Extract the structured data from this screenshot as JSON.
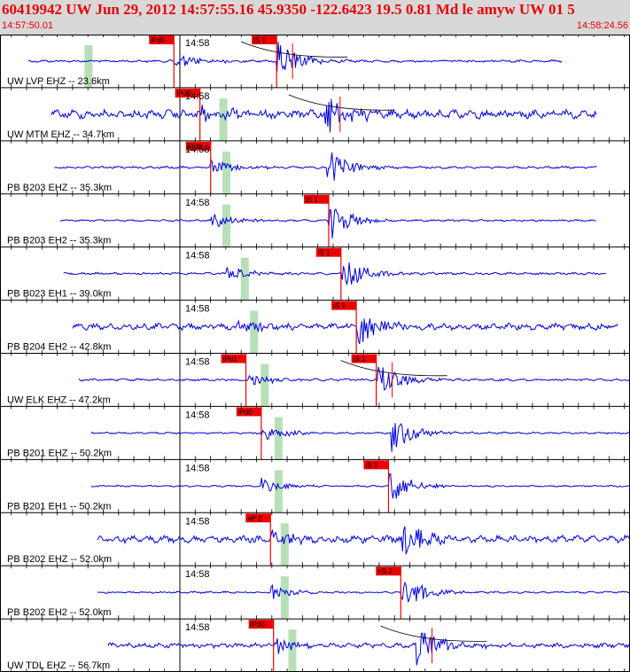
{
  "header": {
    "title": "60419942 UW Jun 29, 2012 14:57:55.16   45.9350 -122.6423 19.5 0.81 Md le amyw UW 01   5",
    "start_time": "14:57:50.01",
    "end_time": "14:58:24.56"
  },
  "colors": {
    "trace": "#0000dd",
    "pick": "#ee0000",
    "pick_window": "#b8e0b8",
    "header_bg": "#d8d8d8",
    "header_text": "#e80000",
    "grid": "#000000"
  },
  "minute_label": "14:58",
  "traces": [
    {
      "label": "UW LVP EHZ -- 23.6km",
      "p_label": "iPd0",
      "s_label": "iS 1",
      "p_time": 9.6,
      "s_time": 16.3,
      "p_window": 4.0,
      "has_coda": true,
      "start": 0.1,
      "end": 34.9,
      "noise": 0.15,
      "burst": 1.0
    },
    {
      "label": "UW MTM EHZ -- 34.7km",
      "p_label": "iPd0",
      "s_label": "",
      "p_time": 11.3,
      "s_time": 19.4,
      "p_window": 12.8,
      "has_coda": true,
      "start": 1.6,
      "end": 37.2,
      "noise": 0.55,
      "burst": 1.0
    },
    {
      "label": "PB B203 EHZ -- 35.3km",
      "p_label": "iPd0",
      "s_label": "",
      "p_time": 12.0,
      "s_time": 19.6,
      "p_window": 13.0,
      "has_coda": false,
      "start": 1.8,
      "end": 37.2,
      "noise": 0.15,
      "burst": 0.9
    },
    {
      "label": "PB B203 EH2 -- 35.3km",
      "p_label": "",
      "s_label": "iS 1",
      "p_time": 12.0,
      "s_time": 19.7,
      "p_window": 13.0,
      "has_coda": false,
      "start": 2.2,
      "end": 37.2,
      "noise": 0.12,
      "burst": 0.9
    },
    {
      "label": "PB B023 EH1 -- 39.0km",
      "p_label": "",
      "s_label": "iS 1",
      "p_time": 13.0,
      "s_time": 20.5,
      "p_window": 14.2,
      "has_coda": false,
      "start": 2.4,
      "end": 37.8,
      "noise": 0.15,
      "burst": 0.9
    },
    {
      "label": "PB B204 EH2 -- 42.8km",
      "p_label": "",
      "s_label": "iS 1",
      "p_time": 13.8,
      "s_time": 21.5,
      "p_window": 14.8,
      "has_coda": false,
      "start": 3.0,
      "end": 38.6,
      "noise": 0.4,
      "burst": 1.0
    },
    {
      "label": "UW ELK EHZ -- 47.2km",
      "p_label": "iPu1",
      "s_label": "iS 1",
      "p_time": 14.3,
      "s_time": 22.8,
      "p_window": 15.5,
      "has_coda": true,
      "start": 3.4,
      "end": 39.5,
      "noise": 0.15,
      "burst": 0.9
    },
    {
      "label": "PB B201 EHZ -- 50.2km",
      "p_label": "iPd0",
      "s_label": "",
      "p_time": 15.3,
      "s_time": 23.8,
      "p_window": 16.4,
      "has_coda": false,
      "start": 4.2,
      "end": 39.8,
      "noise": 0.12,
      "burst": 0.9
    },
    {
      "label": "PB B201 EH1 -- 50.2km",
      "p_label": "",
      "s_label": "iS 1",
      "p_time": 15.3,
      "s_time": 23.6,
      "p_window": 16.4,
      "has_coda": false,
      "start": 4.2,
      "end": 39.8,
      "noise": 0.1,
      "burst": 0.9
    },
    {
      "label": "PB B202 EHZ -- 52.0km",
      "p_label": "eP 2",
      "s_label": "",
      "p_time": 15.9,
      "s_time": 24.5,
      "p_window": 16.8,
      "has_coda": false,
      "start": 4.6,
      "end": 40.0,
      "noise": 0.45,
      "burst": 1.0
    },
    {
      "label": "PB B202 EH2 -- 52.0km",
      "p_label": "",
      "s_label": "eS 2",
      "p_time": 15.9,
      "s_time": 24.4,
      "p_window": 16.8,
      "has_coda": false,
      "start": 4.6,
      "end": 40.0,
      "noise": 0.12,
      "burst": 0.9
    },
    {
      "label": "UW TDL EHZ -- 56.7km",
      "p_label": "iPd0",
      "s_label": "",
      "p_time": 16.1,
      "s_time": 25.4,
      "p_window": 17.3,
      "has_coda": true,
      "start": 5.3,
      "end": 40.4,
      "noise": 0.3,
      "burst": 1.0
    }
  ],
  "time_axis": {
    "start_offset_s": 0,
    "end_offset_s": 34.55,
    "minute_offset_s": 9.99
  }
}
